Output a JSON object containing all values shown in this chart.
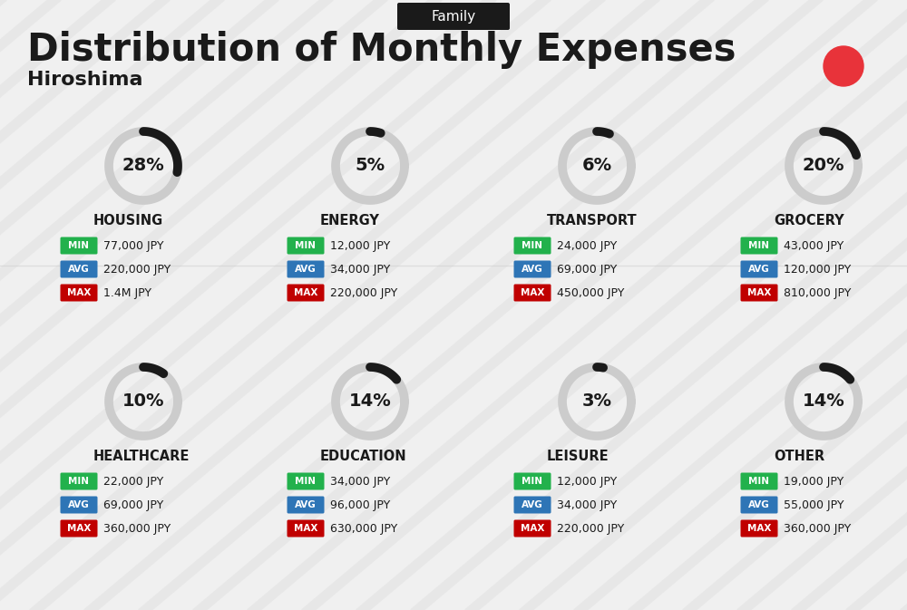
{
  "title": "Distribution of Monthly Expenses",
  "subtitle": "Hiroshima",
  "tag": "Family",
  "bg_color": "#f0f0f0",
  "red_dot_color": "#e8333a",
  "categories": [
    {
      "name": "HOUSING",
      "pct": 28,
      "min": "77,000 JPY",
      "avg": "220,000 JPY",
      "max": "1.4M JPY",
      "col": 0,
      "row": 0
    },
    {
      "name": "ENERGY",
      "pct": 5,
      "min": "12,000 JPY",
      "avg": "34,000 JPY",
      "max": "220,000 JPY",
      "col": 1,
      "row": 0
    },
    {
      "name": "TRANSPORT",
      "pct": 6,
      "min": "24,000 JPY",
      "avg": "69,000 JPY",
      "max": "450,000 JPY",
      "col": 2,
      "row": 0
    },
    {
      "name": "GROCERY",
      "pct": 20,
      "min": "43,000 JPY",
      "avg": "120,000 JPY",
      "max": "810,000 JPY",
      "col": 3,
      "row": 0
    },
    {
      "name": "HEALTHCARE",
      "pct": 10,
      "min": "22,000 JPY",
      "avg": "69,000 JPY",
      "max": "360,000 JPY",
      "col": 0,
      "row": 1
    },
    {
      "name": "EDUCATION",
      "pct": 14,
      "min": "34,000 JPY",
      "avg": "96,000 JPY",
      "max": "630,000 JPY",
      "col": 1,
      "row": 1
    },
    {
      "name": "LEISURE",
      "pct": 3,
      "min": "12,000 JPY",
      "avg": "34,000 JPY",
      "max": "220,000 JPY",
      "col": 2,
      "row": 1
    },
    {
      "name": "OTHER",
      "pct": 14,
      "min": "19,000 JPY",
      "avg": "55,000 JPY",
      "max": "360,000 JPY",
      "col": 3,
      "row": 1
    }
  ],
  "min_color": "#22b14c",
  "avg_color": "#2e75b6",
  "max_color": "#c00000",
  "label_color": "#ffffff",
  "text_color": "#1a1a1a",
  "arc_color_filled": "#1a1a1a",
  "arc_color_empty": "#cccccc"
}
